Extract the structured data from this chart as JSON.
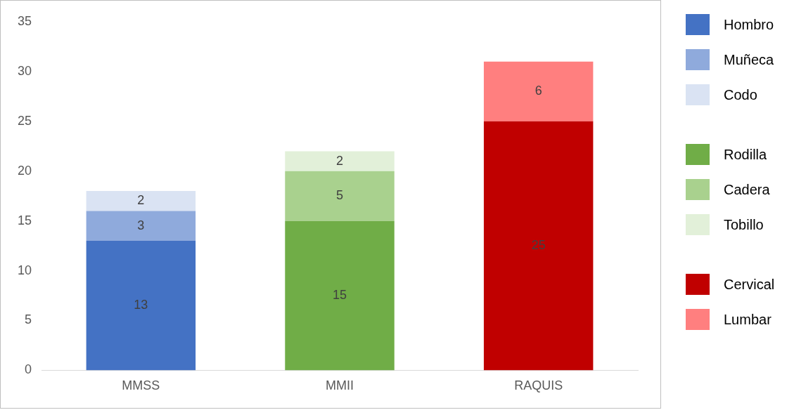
{
  "chart_data": {
    "type": "bar",
    "stacked": true,
    "categories": [
      "MMSS",
      "MMII",
      "RAQUIS"
    ],
    "series": [
      {
        "name": "Hombro",
        "color": "#4472c4",
        "values": [
          13,
          null,
          null
        ]
      },
      {
        "name": "Muñeca",
        "color": "#8faadc",
        "values": [
          3,
          null,
          null
        ]
      },
      {
        "name": "Codo",
        "color": "#dae3f3",
        "values": [
          2,
          null,
          null
        ]
      },
      {
        "name": "Rodilla",
        "color": "#70ad47",
        "values": [
          null,
          15,
          null
        ]
      },
      {
        "name": "Cadera",
        "color": "#a9d18e",
        "values": [
          null,
          5,
          null
        ]
      },
      {
        "name": "Tobillo",
        "color": "#e2f0d9",
        "values": [
          null,
          2,
          null
        ]
      },
      {
        "name": "Cervical",
        "color": "#c00000",
        "values": [
          null,
          null,
          25
        ]
      },
      {
        "name": "Lumbar",
        "color": "#ff7f7f",
        "values": [
          null,
          null,
          6
        ]
      }
    ],
    "ylim": [
      0,
      35
    ],
    "yticks": [
      0,
      5,
      10,
      15,
      20,
      25,
      30,
      35
    ],
    "grid": false,
    "legend": "right",
    "data_labels": true
  }
}
